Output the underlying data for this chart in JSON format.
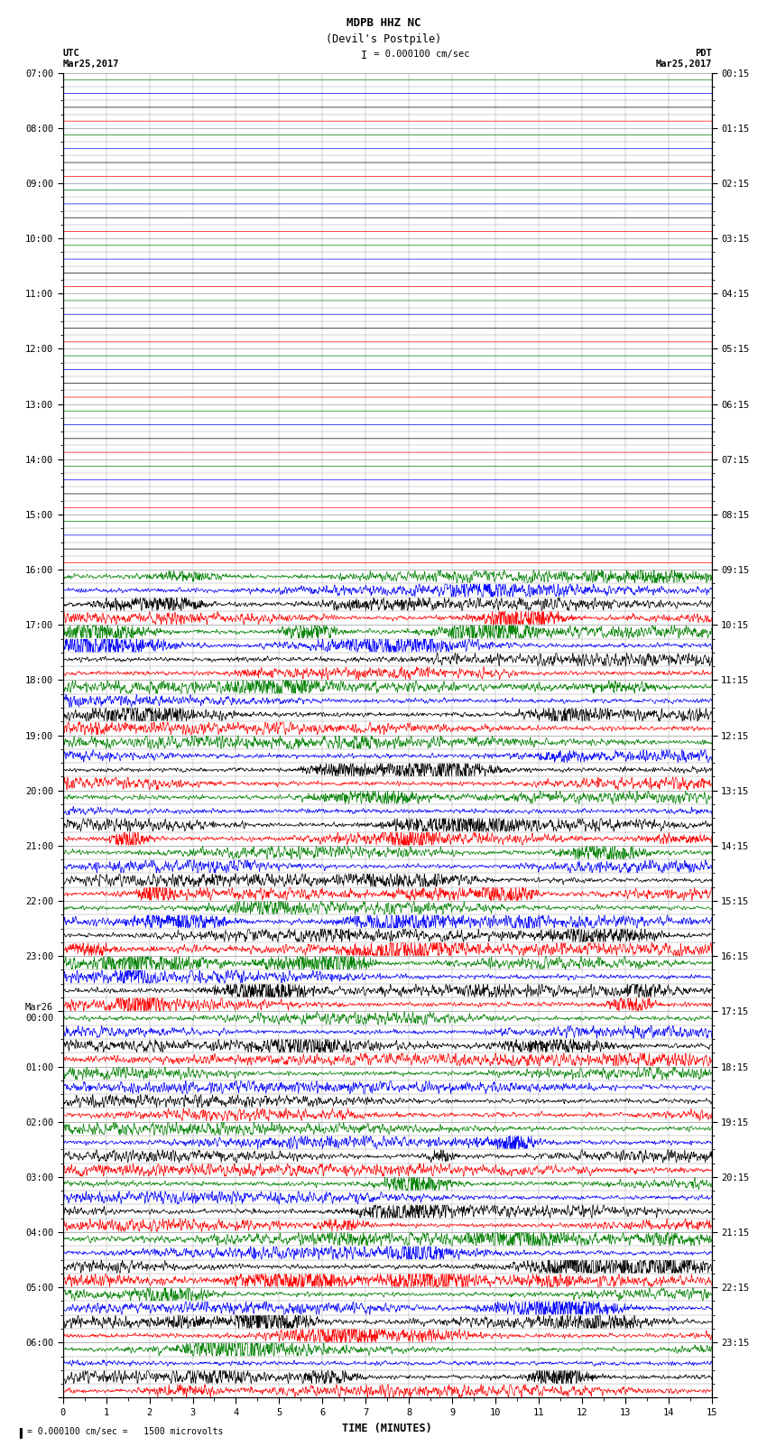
{
  "title_line1": "MDPB HHZ NC",
  "title_line2": "(Devil's Postpile)",
  "scale_label": "I",
  "scale_text": " = 0.000100 cm/sec",
  "left_label_line1": "UTC",
  "left_label_line2": "Mar25,2017",
  "right_label_line1": "PDT",
  "right_label_line2": "Mar25,2017",
  "bottom_label": "TIME (MINUTES)",
  "bottom_note": "= 0.000100 cm/sec =   1500 microvolts",
  "utc_times_all": [
    "07:00",
    "",
    "",
    "",
    "08:00",
    "",
    "",
    "",
    "09:00",
    "",
    "",
    "",
    "10:00",
    "",
    "",
    "",
    "11:00",
    "",
    "",
    "",
    "12:00",
    "",
    "",
    "",
    "13:00",
    "",
    "",
    "",
    "14:00",
    "",
    "",
    "",
    "15:00",
    "",
    "",
    "",
    "16:00",
    "",
    "",
    "",
    "17:00",
    "",
    "",
    "",
    "18:00",
    "",
    "",
    "",
    "19:00",
    "",
    "",
    "",
    "20:00",
    "",
    "",
    "",
    "21:00",
    "",
    "",
    "",
    "22:00",
    "",
    "",
    "",
    "23:00",
    "",
    "",
    "",
    "Mar26\n00:00",
    "",
    "",
    "",
    "01:00",
    "",
    "",
    "",
    "02:00",
    "",
    "",
    "",
    "03:00",
    "",
    "",
    "",
    "04:00",
    "",
    "",
    "",
    "05:00",
    "",
    "",
    "",
    "06:00",
    "",
    "",
    ""
  ],
  "pdt_times_all": [
    "00:15",
    "",
    "",
    "",
    "01:15",
    "",
    "",
    "",
    "02:15",
    "",
    "",
    "",
    "03:15",
    "",
    "",
    "",
    "04:15",
    "",
    "",
    "",
    "05:15",
    "",
    "",
    "",
    "06:15",
    "",
    "",
    "",
    "07:15",
    "",
    "",
    "",
    "08:15",
    "",
    "",
    "",
    "09:15",
    "",
    "",
    "",
    "10:15",
    "",
    "",
    "",
    "11:15",
    "",
    "",
    "",
    "12:15",
    "",
    "",
    "",
    "13:15",
    "",
    "",
    "",
    "14:15",
    "",
    "",
    "",
    "15:15",
    "",
    "",
    "",
    "16:15",
    "",
    "",
    "",
    "17:15",
    "",
    "",
    "",
    "18:15",
    "",
    "",
    "",
    "19:15",
    "",
    "",
    "",
    "20:15",
    "",
    "",
    "",
    "21:15",
    "",
    "",
    "",
    "22:15",
    "",
    "",
    "",
    "23:15",
    "",
    "",
    ""
  ],
  "colors_cycle": [
    "green",
    "blue",
    "black",
    "red"
  ],
  "n_rows": 96,
  "n_minutes": 15,
  "quiet_rows": 36,
  "amplitude_quiet": 0.008,
  "amplitude_active": 0.38,
  "seed": 12345,
  "bg_color": "white",
  "grid_color": "#999999",
  "grid_lw": 0.3,
  "trace_lw": 0.5,
  "text_color": "black",
  "font_family": "monospace",
  "title_fontsize": 9,
  "label_fontsize": 7.5,
  "tick_fontsize": 7.5,
  "xmin": 0,
  "xmax": 15
}
